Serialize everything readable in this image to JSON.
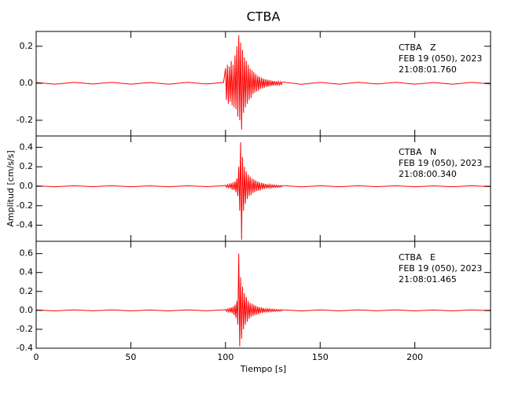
{
  "chart_data": [
    {
      "type": "line",
      "title": "CTBA",
      "annotations": [
        "CTBA   Z",
        "FEB 19 (050), 2023",
        "21:08:01.760"
      ],
      "xlim": [
        0,
        240
      ],
      "xticks": [
        0,
        50,
        100,
        150,
        200
      ],
      "ylim": [
        -0.285,
        0.28
      ],
      "yticks": [
        -0.2,
        {
          "value": 0,
          "label": "0.0"
        },
        0.2
      ],
      "series": [
        {
          "color": "#ff0000",
          "x": [
            0,
            10,
            20,
            30,
            40,
            50,
            60,
            70,
            80,
            90,
            99,
            100,
            100.5,
            101,
            101.5,
            102,
            102.5,
            103,
            103.5,
            104,
            104.5,
            105,
            105.5,
            106,
            106.5,
            107,
            107.5,
            108,
            108.5,
            109,
            109.5,
            110,
            110.5,
            111,
            111.5,
            112,
            112.5,
            113,
            113.5,
            114,
            114.5,
            115,
            115.5,
            116,
            116.5,
            117,
            117.5,
            118,
            118.5,
            119,
            119.5,
            120,
            120.5,
            121,
            121.5,
            122,
            122.5,
            123,
            123.5,
            124,
            124.5,
            125,
            125.5,
            126,
            126.5,
            127,
            127.5,
            128,
            128.5,
            129,
            129.5,
            130,
            140,
            150,
            160,
            170,
            180,
            190,
            200,
            210,
            220,
            230,
            240
          ],
          "values": [
            0.004,
            -0.005,
            0.005,
            -0.004,
            0.005,
            -0.005,
            0.004,
            -0.005,
            0.005,
            -0.004,
            0.005,
            0.08,
            -0.09,
            0.1,
            -0.11,
            0.09,
            -0.1,
            0.12,
            -0.12,
            0.1,
            -0.13,
            0.15,
            -0.14,
            0.2,
            -0.18,
            0.26,
            -0.2,
            0.22,
            -0.25,
            0.18,
            -0.16,
            0.14,
            -0.13,
            0.12,
            -0.11,
            0.1,
            -0.09,
            0.08,
            -0.08,
            0.07,
            -0.06,
            0.06,
            -0.05,
            0.05,
            -0.045,
            0.04,
            -0.04,
            0.035,
            -0.03,
            0.03,
            -0.028,
            0.025,
            -0.024,
            0.022,
            -0.02,
            0.02,
            -0.018,
            0.017,
            -0.016,
            0.015,
            -0.014,
            0.013,
            -0.012,
            0.012,
            -0.011,
            0.01,
            -0.01,
            0.009,
            -0.009,
            0.008,
            -0.008,
            0.007,
            -0.006,
            0.005,
            -0.005,
            0.005,
            -0.004,
            0.005,
            -0.005,
            0.004,
            -0.005,
            0.005,
            -0.004
          ]
        }
      ]
    },
    {
      "type": "line",
      "ylabel": "Amplitud  [cm/s/s]",
      "annotations": [
        "CTBA   N",
        "FEB 19 (050), 2023",
        "21:08:00.340"
      ],
      "xlim": [
        0,
        240
      ],
      "xticks": [
        0,
        50,
        100,
        150,
        200
      ],
      "ylim": [
        -0.565,
        0.516
      ],
      "yticks": [
        -0.4,
        -0.2,
        {
          "value": 0,
          "label": "0.0"
        },
        0.2,
        0.4
      ],
      "series": [
        {
          "color": "#ff0000",
          "x": [
            0,
            10,
            20,
            30,
            40,
            50,
            60,
            70,
            80,
            90,
            99,
            100,
            100.5,
            101,
            101.5,
            102,
            102.5,
            103,
            103.5,
            104,
            104.5,
            105,
            105.5,
            106,
            106.5,
            107,
            107.5,
            108,
            108.5,
            109,
            109.5,
            110,
            110.5,
            111,
            111.5,
            112,
            112.5,
            113,
            113.5,
            114,
            114.5,
            115,
            115.5,
            116,
            116.5,
            117,
            117.5,
            118,
            118.5,
            119,
            119.5,
            120,
            120.5,
            121,
            121.5,
            122,
            122.5,
            123,
            123.5,
            124,
            124.5,
            125,
            125.5,
            126,
            126.5,
            127,
            127.5,
            128,
            128.5,
            129,
            129.5,
            130,
            140,
            150,
            160,
            170,
            180,
            190,
            200,
            210,
            220,
            230,
            240
          ],
          "values": [
            0.004,
            -0.005,
            0.005,
            -0.004,
            0.005,
            -0.005,
            0.004,
            -0.005,
            0.005,
            -0.004,
            0.005,
            0.01,
            -0.01,
            0.015,
            -0.015,
            0.02,
            -0.02,
            0.03,
            -0.035,
            0.04,
            -0.04,
            0.05,
            -0.06,
            0.08,
            -0.1,
            0.2,
            -0.25,
            0.45,
            -0.55,
            0.3,
            -0.25,
            0.2,
            -0.18,
            0.15,
            -0.13,
            0.12,
            -0.1,
            0.1,
            -0.09,
            0.08,
            -0.07,
            0.07,
            -0.06,
            0.06,
            -0.05,
            0.05,
            -0.045,
            0.04,
            -0.04,
            0.035,
            -0.03,
            0.03,
            -0.028,
            0.025,
            -0.022,
            0.02,
            -0.02,
            0.018,
            -0.016,
            0.015,
            -0.014,
            0.013,
            -0.012,
            0.012,
            -0.011,
            0.01,
            -0.01,
            0.009,
            -0.009,
            0.008,
            -0.008,
            0.007,
            -0.006,
            0.005,
            -0.005,
            0.005,
            -0.004,
            0.005,
            -0.005,
            0.004,
            -0.005,
            0.005,
            -0.004
          ]
        }
      ]
    },
    {
      "type": "line",
      "xlabel": "Tiempo  [s]",
      "annotations": [
        "CTBA   E",
        "FEB 19 (050), 2023",
        "21:08:01.465"
      ],
      "xlim": [
        0,
        240
      ],
      "xticks": [
        0,
        50,
        100,
        150,
        200
      ],
      "ylim": [
        -0.4,
        0.73
      ],
      "yticks": [
        -0.4,
        -0.2,
        {
          "value": 0,
          "label": "0.0"
        },
        0.2,
        0.4,
        0.6
      ],
      "series": [
        {
          "color": "#ff0000",
          "x": [
            0,
            10,
            20,
            30,
            40,
            50,
            60,
            70,
            80,
            90,
            99,
            100,
            100.5,
            101,
            101.5,
            102,
            102.5,
            103,
            103.5,
            104,
            104.5,
            105,
            105.5,
            106,
            106.5,
            107,
            107.5,
            108,
            108.5,
            109,
            109.5,
            110,
            110.5,
            111,
            111.5,
            112,
            112.5,
            113,
            113.5,
            114,
            114.5,
            115,
            115.5,
            116,
            116.5,
            117,
            117.5,
            118,
            118.5,
            119,
            119.5,
            120,
            120.5,
            121,
            121.5,
            122,
            122.5,
            123,
            123.5,
            124,
            124.5,
            125,
            125.5,
            126,
            126.5,
            127,
            127.5,
            128,
            128.5,
            129,
            129.5,
            130,
            140,
            150,
            160,
            170,
            180,
            190,
            200,
            210,
            220,
            230,
            240
          ],
          "values": [
            0.004,
            -0.005,
            0.005,
            -0.004,
            0.005,
            -0.005,
            0.004,
            -0.005,
            0.005,
            -0.004,
            0.005,
            0.01,
            -0.01,
            0.015,
            -0.015,
            0.02,
            -0.02,
            0.03,
            -0.03,
            0.04,
            -0.05,
            0.06,
            -0.08,
            0.1,
            -0.15,
            0.6,
            -0.38,
            0.35,
            -0.3,
            0.25,
            -0.2,
            0.18,
            -0.15,
            0.14,
            -0.12,
            0.1,
            -0.09,
            0.08,
            -0.07,
            0.07,
            -0.06,
            0.06,
            -0.05,
            0.05,
            -0.045,
            0.04,
            -0.04,
            0.035,
            -0.03,
            0.03,
            -0.028,
            0.025,
            -0.022,
            0.02,
            -0.02,
            0.018,
            -0.016,
            0.015,
            -0.014,
            0.013,
            -0.012,
            0.012,
            -0.011,
            0.01,
            -0.01,
            0.009,
            -0.009,
            0.008,
            -0.008,
            0.007,
            -0.007,
            0.006,
            -0.006,
            0.005,
            -0.005,
            0.005,
            -0.004,
            0.005,
            -0.005,
            0.004,
            -0.005,
            0.005,
            -0.004
          ]
        }
      ]
    }
  ]
}
